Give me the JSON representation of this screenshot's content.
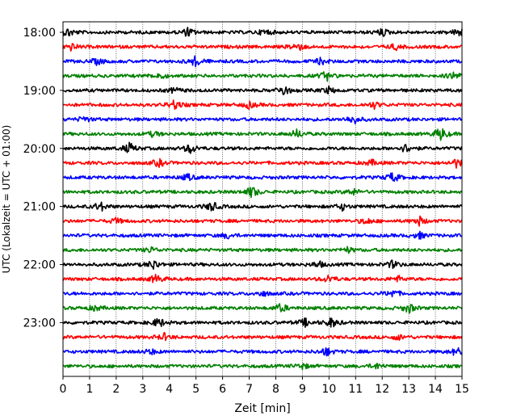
{
  "chart_data": {
    "type": "line",
    "title": "",
    "xlabel": "Zeit  [min]",
    "ylabel": "UTC (Lokalzeit = UTC + 01:00)",
    "xlim": [
      0,
      15
    ],
    "x_ticks": [
      "0",
      "1",
      "2",
      "3",
      "4",
      "5",
      "6",
      "7",
      "8",
      "9",
      "10",
      "11",
      "12",
      "13",
      "14",
      "15"
    ],
    "y_ticks": [
      "18:00",
      "19:00",
      "20:00",
      "21:00",
      "22:00",
      "23:00"
    ],
    "grid": "vertical dotted",
    "trace_minutes_per_line": 15,
    "trace_colors_cycle": [
      "#000000",
      "#ff0000",
      "#0000ff",
      "#008000"
    ],
    "series": [
      {
        "start": "18:00",
        "color": "#000000",
        "events": [
          [
            0.2,
            0.8
          ],
          [
            4.7,
            0.8
          ],
          [
            7.6,
            0.6
          ],
          [
            12.0,
            0.7
          ],
          [
            14.9,
            0.8
          ]
        ]
      },
      {
        "start": "18:15",
        "color": "#ff0000",
        "events": [
          [
            0.3,
            0.6
          ],
          [
            8.8,
            0.9
          ],
          [
            12.5,
            0.5
          ]
        ]
      },
      {
        "start": "18:30",
        "color": "#0000ff",
        "events": [
          [
            1.3,
            0.6
          ],
          [
            5.0,
            1.0
          ],
          [
            9.7,
            0.6
          ]
        ]
      },
      {
        "start": "18:45",
        "color": "#008000",
        "events": [
          [
            3.6,
            0.6
          ],
          [
            9.9,
            0.9
          ],
          [
            14.7,
            0.7
          ]
        ]
      },
      {
        "start": "19:00",
        "color": "#000000",
        "events": [
          [
            4.2,
            0.5
          ],
          [
            8.3,
            1.0
          ],
          [
            10.0,
            0.6
          ]
        ]
      },
      {
        "start": "19:15",
        "color": "#ff0000",
        "events": [
          [
            4.2,
            0.9
          ],
          [
            7.0,
            0.6
          ],
          [
            11.7,
            0.6
          ]
        ]
      },
      {
        "start": "19:30",
        "color": "#0000ff",
        "events": [
          [
            10.9,
            0.9
          ],
          [
            0.8,
            0.5
          ]
        ]
      },
      {
        "start": "19:45",
        "color": "#008000",
        "events": [
          [
            3.4,
            0.5
          ],
          [
            8.8,
            0.8
          ],
          [
            14.2,
            1.3
          ]
        ]
      },
      {
        "start": "20:00",
        "color": "#000000",
        "events": [
          [
            2.5,
            1.0
          ],
          [
            4.8,
            0.9
          ],
          [
            12.9,
            0.8
          ]
        ]
      },
      {
        "start": "20:15",
        "color": "#ff0000",
        "events": [
          [
            3.6,
            0.7
          ],
          [
            11.6,
            0.5
          ],
          [
            14.8,
            0.8
          ]
        ]
      },
      {
        "start": "20:30",
        "color": "#0000ff",
        "events": [
          [
            12.4,
            0.9
          ],
          [
            4.7,
            0.6
          ]
        ]
      },
      {
        "start": "20:45",
        "color": "#008000",
        "events": [
          [
            7.1,
            1.1
          ],
          [
            10.9,
            0.6
          ]
        ]
      },
      {
        "start": "21:00",
        "color": "#000000",
        "events": [
          [
            1.4,
            0.9
          ],
          [
            5.6,
            0.9
          ],
          [
            10.5,
            0.6
          ]
        ]
      },
      {
        "start": "21:15",
        "color": "#ff0000",
        "events": [
          [
            13.4,
            0.8
          ],
          [
            2.0,
            0.5
          ],
          [
            11.4,
            0.6
          ]
        ]
      },
      {
        "start": "21:30",
        "color": "#0000ff",
        "events": [
          [
            6.2,
            0.5
          ],
          [
            13.4,
            0.6
          ]
        ]
      },
      {
        "start": "21:45",
        "color": "#008000",
        "events": [
          [
            3.3,
            0.5
          ],
          [
            10.7,
            0.5
          ]
        ]
      },
      {
        "start": "22:00",
        "color": "#000000",
        "events": [
          [
            3.4,
            0.9
          ],
          [
            9.6,
            0.6
          ],
          [
            12.4,
            0.7
          ]
        ]
      },
      {
        "start": "22:15",
        "color": "#ff0000",
        "events": [
          [
            3.5,
            0.8
          ],
          [
            10.0,
            0.7
          ],
          [
            12.6,
            0.5
          ]
        ]
      },
      {
        "start": "22:30",
        "color": "#0000ff",
        "events": [
          [
            12.4,
            0.7
          ],
          [
            7.5,
            0.5
          ]
        ]
      },
      {
        "start": "22:45",
        "color": "#008000",
        "events": [
          [
            13.0,
            0.9
          ],
          [
            8.2,
            0.8
          ],
          [
            1.2,
            0.5
          ]
        ]
      },
      {
        "start": "23:00",
        "color": "#000000",
        "events": [
          [
            3.6,
            0.9
          ],
          [
            10.1,
            0.9
          ],
          [
            9.1,
            0.7
          ]
        ]
      },
      {
        "start": "23:15",
        "color": "#ff0000",
        "events": [
          [
            3.8,
            0.6
          ],
          [
            12.6,
            0.5
          ]
        ]
      },
      {
        "start": "23:30",
        "color": "#0000ff",
        "events": [
          [
            9.9,
            0.8
          ],
          [
            14.8,
            0.8
          ],
          [
            3.3,
            0.5
          ]
        ]
      },
      {
        "start": "23:45",
        "color": "#008000",
        "events": [
          [
            9.0,
            0.5
          ],
          [
            11.8,
            0.5
          ]
        ]
      }
    ]
  }
}
